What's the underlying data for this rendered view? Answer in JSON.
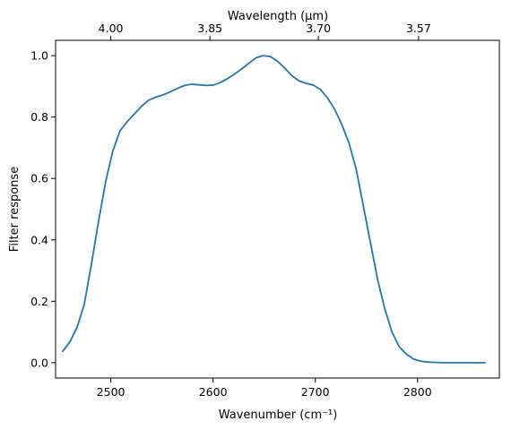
{
  "chart_data": {
    "type": "line",
    "xlabel": "Wavenumber (cm⁻¹)",
    "ylabel": "Filter response",
    "top_xlabel": "Wavelength (μm)",
    "xlim": [
      2446,
      2880
    ],
    "ylim": [
      -0.05,
      1.05
    ],
    "grid": false,
    "x_ticks": [
      2500,
      2600,
      2700,
      2800
    ],
    "x_tick_labels": [
      "2500",
      "2600",
      "2700",
      "2800"
    ],
    "y_ticks": [
      0.0,
      0.2,
      0.4,
      0.6,
      0.8,
      1.0
    ],
    "y_tick_labels": [
      "0.0",
      "0.2",
      "0.4",
      "0.6",
      "0.8",
      "1.0"
    ],
    "top_ticks": [
      2500,
      2597,
      2703,
      2801
    ],
    "top_tick_labels": [
      "4.00",
      "3.85",
      "3.70",
      "3.57"
    ],
    "series": [
      {
        "color": "#1f77b4",
        "x": [
          2453,
          2460,
          2467,
          2474,
          2481,
          2488,
          2495,
          2502,
          2509,
          2516,
          2523,
          2530,
          2537,
          2544,
          2551,
          2558,
          2565,
          2572,
          2579,
          2586,
          2593,
          2600,
          2607,
          2614,
          2621,
          2628,
          2635,
          2642,
          2649,
          2656,
          2663,
          2670,
          2677,
          2684,
          2691,
          2698,
          2705,
          2712,
          2719,
          2726,
          2733,
          2740,
          2747,
          2754,
          2761,
          2768,
          2775,
          2782,
          2789,
          2796,
          2803,
          2810,
          2817,
          2824,
          2831,
          2838,
          2845,
          2852,
          2859,
          2866
        ],
        "y": [
          0.037,
          0.068,
          0.115,
          0.19,
          0.32,
          0.46,
          0.59,
          0.69,
          0.755,
          0.785,
          0.81,
          0.835,
          0.855,
          0.865,
          0.872,
          0.882,
          0.893,
          0.903,
          0.907,
          0.905,
          0.903,
          0.904,
          0.912,
          0.925,
          0.94,
          0.957,
          0.975,
          0.993,
          1.0,
          0.997,
          0.982,
          0.96,
          0.935,
          0.918,
          0.91,
          0.904,
          0.89,
          0.862,
          0.825,
          0.775,
          0.715,
          0.63,
          0.51,
          0.39,
          0.27,
          0.175,
          0.1,
          0.052,
          0.028,
          0.012,
          0.005,
          0.002,
          0.001,
          0.0,
          0.0,
          0.0,
          0.0,
          0.0,
          0.0,
          0.0
        ]
      }
    ]
  }
}
